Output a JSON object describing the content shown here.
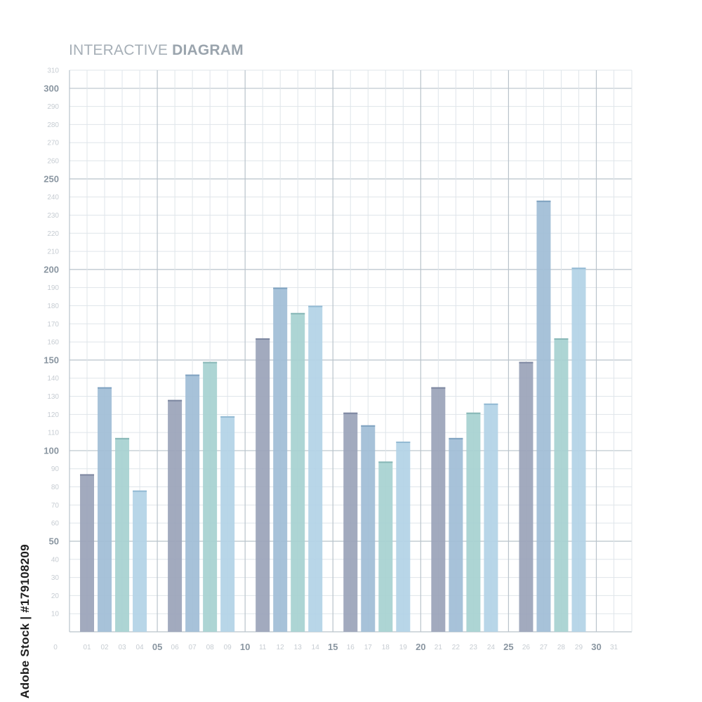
{
  "title": {
    "light": "INTERACTIVE",
    "bold": "DIAGRAM"
  },
  "side_credit": "Adobe Stock | #179108209",
  "colors": {
    "grid_minor": "#dfe5ea",
    "grid_major": "#b9c3cb",
    "tick_minor": "#c6ccd2",
    "tick_major": "#8a96a1",
    "series": [
      "#9aa3b8",
      "#a0bdd6",
      "#a6d1d0",
      "#b2d2e6"
    ],
    "series_top": [
      "#7c86a0",
      "#7fa2c0",
      "#87b7b6",
      "#93bad3"
    ]
  },
  "chart_data": {
    "type": "bar",
    "title": "INTERACTIVE DIAGRAM",
    "xlabel": "",
    "ylabel": "",
    "xlim": [
      0,
      31
    ],
    "ylim": [
      0,
      310
    ],
    "grid": true,
    "y_ticks_major": [
      50,
      100,
      150,
      200,
      250,
      300
    ],
    "y_ticks": [
      10,
      20,
      30,
      40,
      50,
      60,
      70,
      80,
      90,
      100,
      110,
      120,
      130,
      140,
      150,
      160,
      170,
      180,
      190,
      200,
      210,
      220,
      230,
      240,
      250,
      260,
      270,
      280,
      290,
      300,
      310
    ],
    "x_ticks": [
      "0",
      "01",
      "02",
      "03",
      "04",
      "05",
      "06",
      "07",
      "08",
      "09",
      "10",
      "11",
      "12",
      "13",
      "14",
      "15",
      "16",
      "17",
      "18",
      "19",
      "20",
      "21",
      "22",
      "23",
      "24",
      "25",
      "26",
      "27",
      "28",
      "29",
      "30",
      "31"
    ],
    "x_ticks_major": [
      "05",
      "10",
      "15",
      "20",
      "25",
      "30"
    ],
    "bars": [
      {
        "x": 1,
        "value": 87,
        "color_index": 0
      },
      {
        "x": 2,
        "value": 135,
        "color_index": 1
      },
      {
        "x": 3,
        "value": 107,
        "color_index": 2
      },
      {
        "x": 4,
        "value": 78,
        "color_index": 3
      },
      {
        "x": 6,
        "value": 128,
        "color_index": 0
      },
      {
        "x": 7,
        "value": 142,
        "color_index": 1
      },
      {
        "x": 8,
        "value": 149,
        "color_index": 2
      },
      {
        "x": 9,
        "value": 119,
        "color_index": 3
      },
      {
        "x": 11,
        "value": 162,
        "color_index": 0
      },
      {
        "x": 12,
        "value": 190,
        "color_index": 1
      },
      {
        "x": 13,
        "value": 176,
        "color_index": 2
      },
      {
        "x": 14,
        "value": 180,
        "color_index": 3
      },
      {
        "x": 16,
        "value": 121,
        "color_index": 0
      },
      {
        "x": 17,
        "value": 114,
        "color_index": 1
      },
      {
        "x": 18,
        "value": 94,
        "color_index": 2
      },
      {
        "x": 19,
        "value": 105,
        "color_index": 3
      },
      {
        "x": 21,
        "value": 135,
        "color_index": 0
      },
      {
        "x": 22,
        "value": 107,
        "color_index": 1
      },
      {
        "x": 23,
        "value": 121,
        "color_index": 2
      },
      {
        "x": 24,
        "value": 126,
        "color_index": 3
      },
      {
        "x": 26,
        "value": 149,
        "color_index": 0
      },
      {
        "x": 27,
        "value": 238,
        "color_index": 1
      },
      {
        "x": 28,
        "value": 162,
        "color_index": 2
      },
      {
        "x": 29,
        "value": 201,
        "color_index": 3
      }
    ]
  }
}
